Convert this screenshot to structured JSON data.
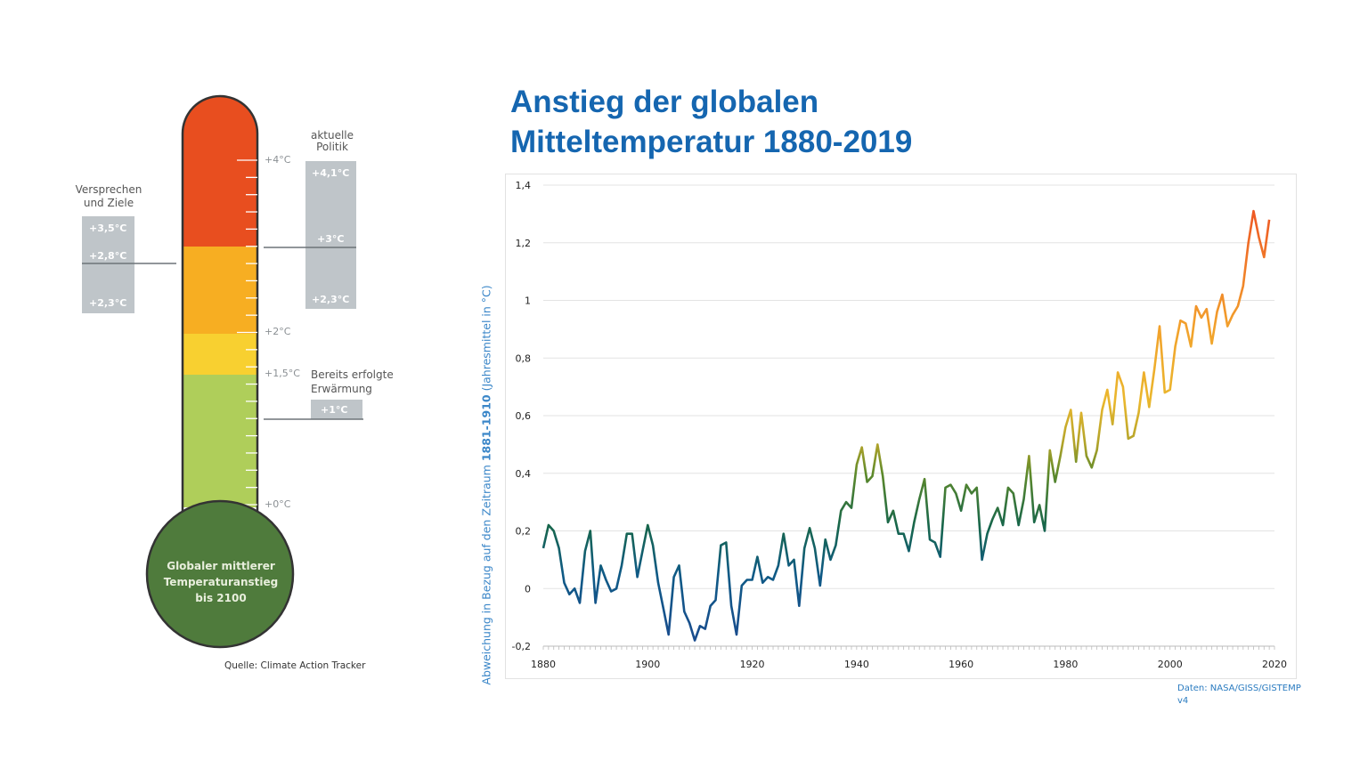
{
  "thermometer": {
    "scale_labels": [
      "+4°C",
      "+2°C",
      "+1,5°C",
      "+0°C"
    ],
    "bulb_text": [
      "Globaler mittlerer",
      "Temperaturanstieg",
      "bis 2100"
    ],
    "promises": {
      "heading": [
        "Versprechen",
        "und Ziele"
      ],
      "values": [
        "+3,5°C",
        "+2,8°C",
        "+2,3°C"
      ]
    },
    "policy": {
      "heading": [
        "aktuelle",
        "Politik"
      ],
      "values": [
        "+4,1°C",
        "+3°C",
        "+2,3°C"
      ]
    },
    "warming": {
      "heading": [
        "Bereits erfolgte",
        "Erwärmung"
      ],
      "value": "+1°C"
    },
    "source": "Quelle: Climate Action Tracker",
    "colors": {
      "red": "#e84e1f",
      "orange": "#f7ae22",
      "yellow": "#f8d030",
      "green": "#afce5a",
      "bulb": "#4f7b3c",
      "box": "#bfc5c9"
    }
  },
  "title": [
    "Anstieg der globalen",
    "Mitteltemperatur 1880-2019"
  ],
  "source": [
    "Daten: NASA/GISS/GISTEMP",
    "v4"
  ],
  "chart_data": {
    "type": "line",
    "title": "Anstieg der globalen Mitteltemperatur 1880-2019",
    "ylabel_parts": [
      "Abweichung in Bezug auf den Zeitraum ",
      "1881-1910",
      " (Jahresmittel in °C)"
    ],
    "xlim": [
      1880,
      2020
    ],
    "ylim": [
      -0.2,
      1.4
    ],
    "xticks": [
      "1880",
      "1900",
      "1920",
      "1940",
      "1960",
      "1980",
      "2000",
      "2020"
    ],
    "yticks": [
      "-0,2",
      "0",
      "0,2",
      "0,4",
      "0,6",
      "0,8",
      "1",
      "1,2",
      "1,4"
    ],
    "grid": true,
    "x_start": 1880,
    "values": [
      0.14,
      0.22,
      0.2,
      0.14,
      0.02,
      -0.02,
      0.0,
      -0.05,
      0.13,
      0.2,
      -0.05,
      0.08,
      0.03,
      -0.01,
      0.0,
      0.08,
      0.19,
      0.19,
      0.04,
      0.13,
      0.22,
      0.15,
      0.02,
      -0.07,
      -0.16,
      0.04,
      0.08,
      -0.08,
      -0.12,
      -0.18,
      -0.13,
      -0.14,
      -0.06,
      -0.04,
      0.15,
      0.16,
      -0.06,
      -0.16,
      0.01,
      0.03,
      0.03,
      0.11,
      0.02,
      0.04,
      0.03,
      0.08,
      0.19,
      0.08,
      0.1,
      -0.06,
      0.14,
      0.21,
      0.14,
      0.01,
      0.17,
      0.1,
      0.15,
      0.27,
      0.3,
      0.28,
      0.43,
      0.49,
      0.37,
      0.39,
      0.5,
      0.39,
      0.23,
      0.27,
      0.19,
      0.19,
      0.13,
      0.23,
      0.31,
      0.38,
      0.17,
      0.16,
      0.11,
      0.35,
      0.36,
      0.33,
      0.27,
      0.36,
      0.33,
      0.35,
      0.1,
      0.19,
      0.24,
      0.28,
      0.22,
      0.35,
      0.33,
      0.22,
      0.31,
      0.46,
      0.23,
      0.29,
      0.2,
      0.48,
      0.37,
      0.46,
      0.56,
      0.62,
      0.44,
      0.61,
      0.46,
      0.42,
      0.48,
      0.62,
      0.69,
      0.57,
      0.75,
      0.7,
      0.52,
      0.53,
      0.61,
      0.75,
      0.63,
      0.76,
      0.91,
      0.68,
      0.69,
      0.84,
      0.93,
      0.92,
      0.84,
      0.98,
      0.94,
      0.97,
      0.85,
      0.96,
      1.02,
      0.91,
      0.95,
      0.98,
      1.05,
      1.2,
      1.31,
      1.22,
      1.15,
      1.28
    ],
    "color_stops": [
      {
        "value": -0.2,
        "color": "#1a4b8f"
      },
      {
        "value": 0.05,
        "color": "#0f5a86"
      },
      {
        "value": 0.22,
        "color": "#17664a"
      },
      {
        "value": 0.4,
        "color": "#5e8a2a"
      },
      {
        "value": 0.5,
        "color": "#b0a32a"
      },
      {
        "value": 0.65,
        "color": "#eab72d"
      },
      {
        "value": 0.9,
        "color": "#f2a22c"
      },
      {
        "value": 1.3,
        "color": "#ee5a24"
      }
    ]
  }
}
